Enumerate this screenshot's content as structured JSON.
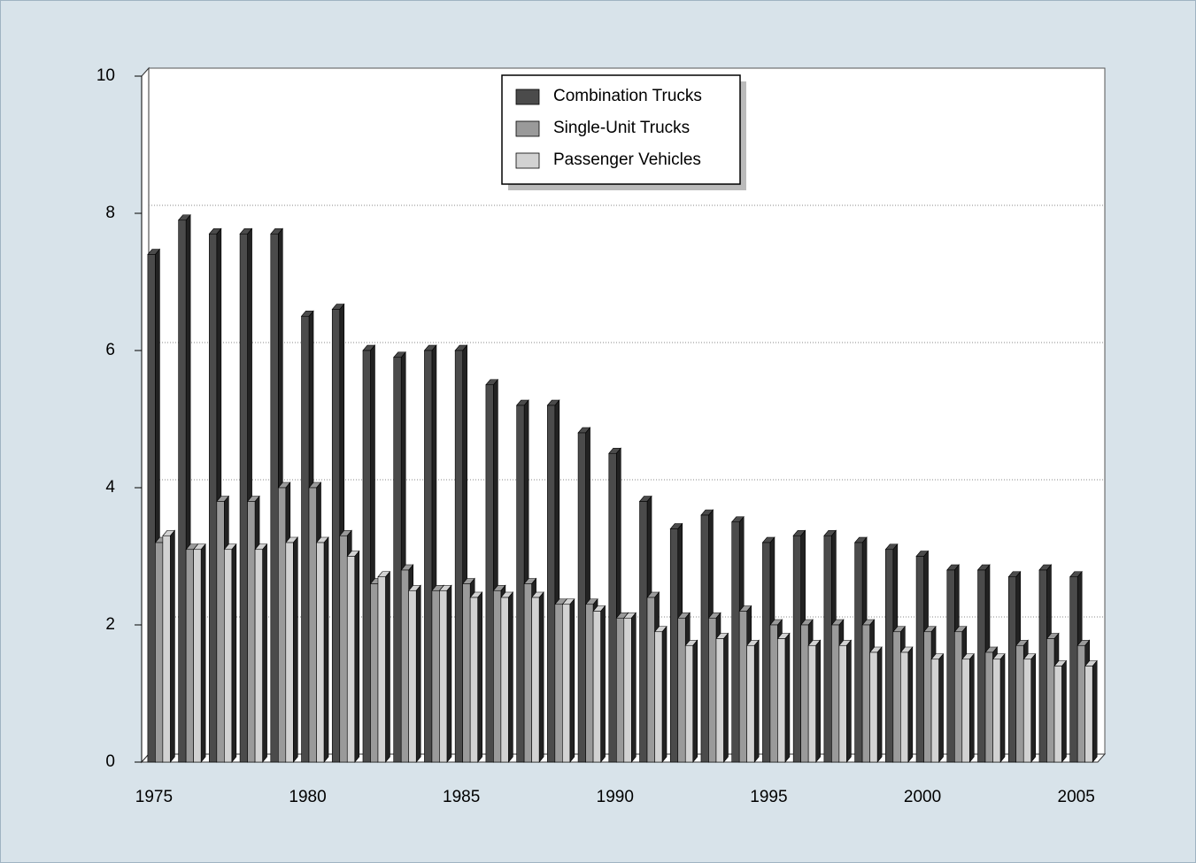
{
  "chart_data": {
    "type": "bar3d",
    "x": [
      1975,
      1976,
      1977,
      1978,
      1979,
      1980,
      1981,
      1982,
      1983,
      1984,
      1985,
      1986,
      1987,
      1988,
      1989,
      1990,
      1991,
      1992,
      1993,
      1994,
      1995,
      1996,
      1997,
      1998,
      1999,
      2000,
      2001,
      2002,
      2003,
      2004,
      2005
    ],
    "series": [
      {
        "name": "Combination Trucks",
        "color": "#4b4b4b",
        "values": [
          7.4,
          7.9,
          7.7,
          7.7,
          7.7,
          6.5,
          6.6,
          6.0,
          5.9,
          6.0,
          6.0,
          5.5,
          5.2,
          5.2,
          4.8,
          4.5,
          3.8,
          3.4,
          3.6,
          3.5,
          3.2,
          3.3,
          3.3,
          3.2,
          3.1,
          3.0,
          2.8,
          2.8,
          2.7,
          2.8,
          2.7
        ]
      },
      {
        "name": "Single-Unit Trucks",
        "color": "#9a9a9a",
        "values": [
          3.2,
          3.1,
          3.8,
          3.8,
          4.0,
          4.0,
          3.3,
          2.6,
          2.8,
          2.5,
          2.6,
          2.5,
          2.6,
          2.3,
          2.3,
          2.1,
          2.4,
          2.1,
          2.1,
          2.2,
          2.0,
          2.0,
          2.0,
          2.0,
          1.9,
          1.9,
          1.9,
          1.6,
          1.7,
          1.8,
          1.7
        ]
      },
      {
        "name": "Passenger Vehicles",
        "color": "#d2d2d2",
        "values": [
          3.3,
          3.1,
          3.1,
          3.1,
          3.2,
          3.2,
          3.0,
          2.7,
          2.5,
          2.5,
          2.4,
          2.4,
          2.4,
          2.3,
          2.2,
          2.1,
          1.9,
          1.7,
          1.8,
          1.7,
          1.8,
          1.7,
          1.7,
          1.6,
          1.6,
          1.5,
          1.5,
          1.5,
          1.5,
          1.4,
          1.4
        ]
      }
    ],
    "xlim": [
      1974.6,
      2005.7
    ],
    "xticks": [
      1975,
      1980,
      1985,
      1990,
      1995,
      2000,
      2005
    ],
    "ylim": [
      0,
      10
    ],
    "yticks": [
      0,
      2,
      4,
      6,
      8,
      10
    ],
    "grid": true
  }
}
